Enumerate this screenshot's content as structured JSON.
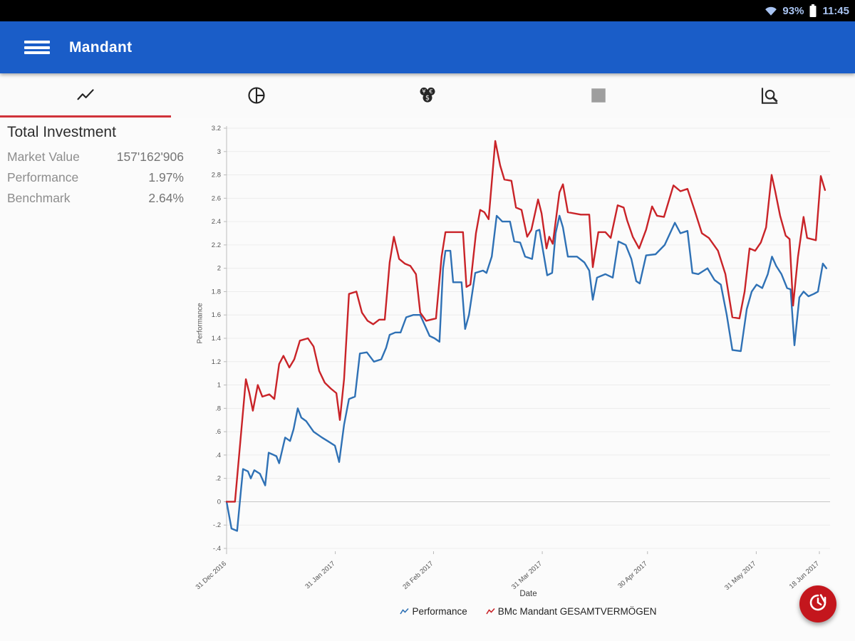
{
  "status_bar": {
    "battery_percent": "93%",
    "time": "11:45"
  },
  "app_bar": {
    "title": "Mandant"
  },
  "tabs": [
    {
      "id": "chart",
      "icon": "trending-up-icon",
      "selected": true
    },
    {
      "id": "allocation",
      "icon": "pie-chart-icon",
      "selected": false
    },
    {
      "id": "money",
      "icon": "coins-icon",
      "selected": false
    },
    {
      "id": "positions",
      "icon": "square-icon",
      "selected": false
    },
    {
      "id": "analysis",
      "icon": "chart-search-icon",
      "selected": false
    }
  ],
  "summary": {
    "title": "Total Investment",
    "rows": [
      {
        "label": "Market Value",
        "value": "157'162'906"
      },
      {
        "label": "Performance",
        "value": "1.97%"
      },
      {
        "label": "Benchmark",
        "value": "2.64%"
      }
    ]
  },
  "fab": {
    "icon": "history-clock-icon",
    "color": "#c4161d"
  },
  "chart_data": {
    "type": "line",
    "title": "",
    "xlabel": "Date",
    "ylabel": "Performance",
    "grid": "horizontal",
    "legend_position": "bottom",
    "ylim": [
      -0.4,
      3.2
    ],
    "yticks": [
      3.2,
      3,
      2.8,
      2.6,
      2.4,
      2.2,
      2,
      1.8,
      1.6,
      1.4,
      1.2,
      1,
      0.8,
      0.6,
      0.4,
      0.2,
      0,
      -0.2,
      -0.4
    ],
    "ytick_labels": [
      "3.2",
      "3",
      "2.8",
      "2.6",
      "2.4",
      "2.2",
      "2",
      "1.8",
      "1.6",
      "1.4",
      "1.2",
      "1",
      ".8",
      ".6",
      ".4",
      ".2",
      "0",
      "-.2",
      "-.4"
    ],
    "x_unit": "days since 31 Dec 2016",
    "xlim": [
      0,
      171
    ],
    "xticks": [
      {
        "day": 0,
        "label": "31 Dec 2016"
      },
      {
        "day": 31,
        "label": "31 Jan 2017"
      },
      {
        "day": 59,
        "label": "28 Feb 2017"
      },
      {
        "day": 90,
        "label": "31 Mar 2017"
      },
      {
        "day": 120,
        "label": "30 Apr 2017"
      },
      {
        "day": 151,
        "label": "31 May 2017"
      },
      {
        "day": 169,
        "label": "18 Jun 2017"
      }
    ],
    "series": [
      {
        "name": "Performance",
        "color": "#2f71b5",
        "points": [
          [
            0,
            0
          ],
          [
            1.4,
            -0.23
          ],
          [
            3,
            -0.25
          ],
          [
            4.1,
            0.1
          ],
          [
            4.7,
            0.28
          ],
          [
            6.1,
            0.26
          ],
          [
            6.9,
            0.2
          ],
          [
            7.9,
            0.27
          ],
          [
            9.5,
            0.24
          ],
          [
            11,
            0.14
          ],
          [
            12,
            0.42
          ],
          [
            14.2,
            0.39
          ],
          [
            15,
            0.33
          ],
          [
            16.7,
            0.55
          ],
          [
            18.1,
            0.52
          ],
          [
            19.1,
            0.62
          ],
          [
            20.3,
            0.8
          ],
          [
            21.3,
            0.72
          ],
          [
            22.7,
            0.69
          ],
          [
            24.8,
            0.6
          ],
          [
            27.2,
            0.55
          ],
          [
            28.8,
            0.52
          ],
          [
            30.9,
            0.48
          ],
          [
            32.1,
            0.34
          ],
          [
            33.5,
            0.66
          ],
          [
            34.9,
            0.88
          ],
          [
            36.6,
            0.9
          ],
          [
            38,
            1.27
          ],
          [
            40,
            1.28
          ],
          [
            42,
            1.2
          ],
          [
            44.1,
            1.22
          ],
          [
            45.5,
            1.32
          ],
          [
            46.5,
            1.43
          ],
          [
            48.1,
            1.45
          ],
          [
            49.6,
            1.45
          ],
          [
            51.2,
            1.58
          ],
          [
            53.2,
            1.6
          ],
          [
            55.2,
            1.6
          ],
          [
            56.7,
            1.5
          ],
          [
            57.9,
            1.42
          ],
          [
            59.3,
            1.4
          ],
          [
            60.7,
            1.37
          ],
          [
            61.7,
            2
          ],
          [
            62.4,
            2.15
          ],
          [
            63.8,
            2.15
          ],
          [
            64.6,
            1.88
          ],
          [
            67,
            1.88
          ],
          [
            68,
            1.48
          ],
          [
            69.1,
            1.6
          ],
          [
            70.9,
            1.96
          ],
          [
            73.1,
            1.98
          ],
          [
            74.1,
            1.96
          ],
          [
            75.6,
            2.1
          ],
          [
            77,
            2.45
          ],
          [
            78.6,
            2.4
          ],
          [
            80.8,
            2.4
          ],
          [
            82,
            2.23
          ],
          [
            83.7,
            2.22
          ],
          [
            85.1,
            2.1
          ],
          [
            87.1,
            2.08
          ],
          [
            88.3,
            2.32
          ],
          [
            89.2,
            2.33
          ],
          [
            90.4,
            2.12
          ],
          [
            91.4,
            1.94
          ],
          [
            92.8,
            1.96
          ],
          [
            93.8,
            2.3
          ],
          [
            94.9,
            2.45
          ],
          [
            95.9,
            2.35
          ],
          [
            97.3,
            2.1
          ],
          [
            99.9,
            2.1
          ],
          [
            102,
            2.05
          ],
          [
            103.4,
            1.98
          ],
          [
            104.4,
            1.73
          ],
          [
            105.6,
            1.92
          ],
          [
            108,
            1.95
          ],
          [
            110.1,
            1.92
          ],
          [
            111.7,
            2.23
          ],
          [
            113.8,
            2.2
          ],
          [
            115.4,
            2.08
          ],
          [
            116.8,
            1.89
          ],
          [
            117.8,
            1.87
          ],
          [
            119.6,
            2.11
          ],
          [
            122.3,
            2.12
          ],
          [
            124.9,
            2.2
          ],
          [
            127.8,
            2.39
          ],
          [
            129.4,
            2.3
          ],
          [
            131.4,
            2.32
          ],
          [
            132.8,
            1.96
          ],
          [
            134.5,
            1.95
          ],
          [
            137.1,
            2
          ],
          [
            139.1,
            1.9
          ],
          [
            140.9,
            1.86
          ],
          [
            142.6,
            1.6
          ],
          [
            144.2,
            1.3
          ],
          [
            146.6,
            1.29
          ],
          [
            148.3,
            1.65
          ],
          [
            149.7,
            1.8
          ],
          [
            151.1,
            1.86
          ],
          [
            152.7,
            1.83
          ],
          [
            154.3,
            1.95
          ],
          [
            155.5,
            2.1
          ],
          [
            156.7,
            2.02
          ],
          [
            158.2,
            1.95
          ],
          [
            159.8,
            1.83
          ],
          [
            160.8,
            1.82
          ],
          [
            161.9,
            1.34
          ],
          [
            163.3,
            1.75
          ],
          [
            164.5,
            1.8
          ],
          [
            165.9,
            1.76
          ],
          [
            167.4,
            1.78
          ],
          [
            168.6,
            1.8
          ],
          [
            170,
            2.04
          ],
          [
            171,
            2
          ]
        ]
      },
      {
        "name": "BMc Mandant GESAMTVERMÖGEN",
        "color": "#c92328",
        "points": [
          [
            0,
            0
          ],
          [
            2.4,
            0
          ],
          [
            5.5,
            1.05
          ],
          [
            6.5,
            0.93
          ],
          [
            7.5,
            0.78
          ],
          [
            8.9,
            1
          ],
          [
            10.2,
            0.9
          ],
          [
            12.2,
            0.92
          ],
          [
            13.6,
            0.88
          ],
          [
            15,
            1.18
          ],
          [
            16.2,
            1.25
          ],
          [
            17.9,
            1.15
          ],
          [
            19.3,
            1.22
          ],
          [
            20.9,
            1.38
          ],
          [
            23.2,
            1.4
          ],
          [
            24.8,
            1.33
          ],
          [
            26.4,
            1.12
          ],
          [
            28,
            1.02
          ],
          [
            29.7,
            0.97
          ],
          [
            31.3,
            0.93
          ],
          [
            32.3,
            0.7
          ],
          [
            33.5,
            1.05
          ],
          [
            34.9,
            1.78
          ],
          [
            37,
            1.8
          ],
          [
            38.6,
            1.62
          ],
          [
            40.2,
            1.55
          ],
          [
            41.8,
            1.52
          ],
          [
            43.5,
            1.56
          ],
          [
            45.1,
            1.56
          ],
          [
            46.5,
            2.05
          ],
          [
            47.7,
            2.27
          ],
          [
            49.2,
            2.08
          ],
          [
            50.8,
            2.04
          ],
          [
            52.4,
            2.02
          ],
          [
            54,
            1.95
          ],
          [
            55.2,
            1.62
          ],
          [
            56.9,
            1.55
          ],
          [
            59.7,
            1.57
          ],
          [
            61.3,
            2.1
          ],
          [
            62.4,
            2.31
          ],
          [
            65.4,
            2.31
          ],
          [
            67.4,
            2.31
          ],
          [
            68.4,
            1.84
          ],
          [
            69.5,
            1.86
          ],
          [
            71.1,
            2.3
          ],
          [
            72.3,
            2.5
          ],
          [
            73.5,
            2.48
          ],
          [
            74.7,
            2.42
          ],
          [
            76.6,
            3.09
          ],
          [
            78,
            2.88
          ],
          [
            79.2,
            2.76
          ],
          [
            81.2,
            2.75
          ],
          [
            82.5,
            2.52
          ],
          [
            84.1,
            2.5
          ],
          [
            85.7,
            2.27
          ],
          [
            86.9,
            2.33
          ],
          [
            88.8,
            2.59
          ],
          [
            89.8,
            2.47
          ],
          [
            91.2,
            2.17
          ],
          [
            92,
            2.27
          ],
          [
            93,
            2.21
          ],
          [
            94.9,
            2.65
          ],
          [
            95.9,
            2.72
          ],
          [
            97.3,
            2.48
          ],
          [
            101,
            2.46
          ],
          [
            103.4,
            2.46
          ],
          [
            104.4,
            2.01
          ],
          [
            106,
            2.31
          ],
          [
            108,
            2.31
          ],
          [
            109.5,
            2.26
          ],
          [
            111.5,
            2.54
          ],
          [
            113.2,
            2.52
          ],
          [
            114.2,
            2.41
          ],
          [
            115.8,
            2.27
          ],
          [
            117.6,
            2.17
          ],
          [
            119.6,
            2.33
          ],
          [
            121.3,
            2.53
          ],
          [
            122.7,
            2.45
          ],
          [
            124.7,
            2.44
          ],
          [
            127.4,
            2.71
          ],
          [
            129.4,
            2.66
          ],
          [
            131.4,
            2.68
          ],
          [
            133.4,
            2.5
          ],
          [
            135.5,
            2.3
          ],
          [
            137.5,
            2.26
          ],
          [
            140.1,
            2.15
          ],
          [
            142.2,
            1.95
          ],
          [
            144.2,
            1.58
          ],
          [
            146.2,
            1.57
          ],
          [
            147.7,
            1.8
          ],
          [
            149.1,
            2.17
          ],
          [
            150.7,
            2.15
          ],
          [
            152.3,
            2.22
          ],
          [
            153.8,
            2.35
          ],
          [
            155.4,
            2.8
          ],
          [
            156.4,
            2.66
          ],
          [
            157.8,
            2.45
          ],
          [
            159.4,
            2.28
          ],
          [
            160.5,
            2.25
          ],
          [
            161.5,
            1.68
          ],
          [
            162.9,
            2.1
          ],
          [
            164.5,
            2.44
          ],
          [
            165.5,
            2.26
          ],
          [
            168,
            2.24
          ],
          [
            169.4,
            2.79
          ],
          [
            170.6,
            2.67
          ]
        ]
      }
    ]
  }
}
